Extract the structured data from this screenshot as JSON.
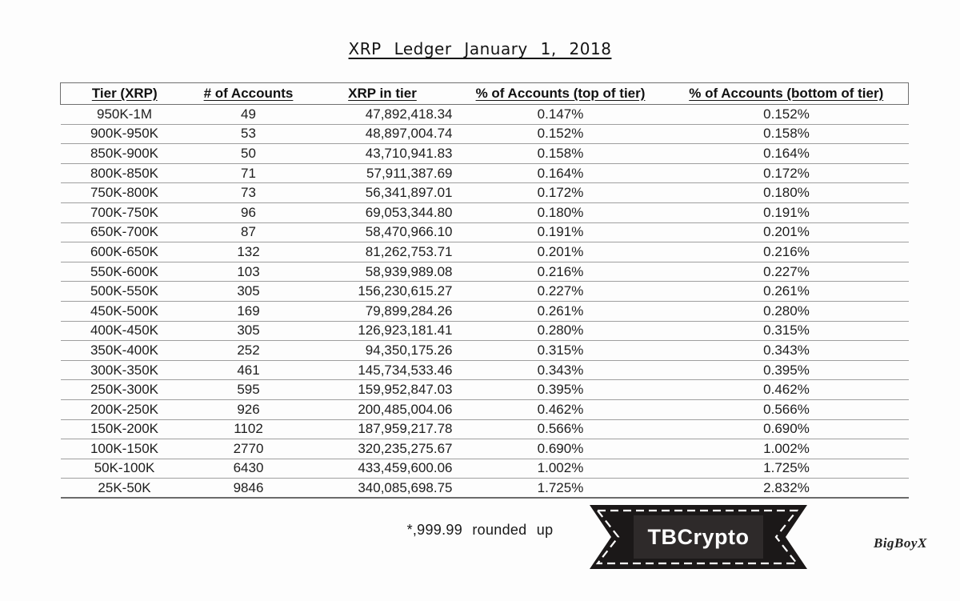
{
  "title": "XRP Ledger January 1, 2018",
  "chart_data": {
    "type": "table",
    "title": "XRP Ledger January 1, 2018",
    "columns": [
      "Tier (XRP)",
      "# of Accounts",
      "XRP in tier",
      "% of Accounts (top of tier)",
      "% of Accounts (bottom of tier)"
    ],
    "rows": [
      [
        "950K-1M",
        "49",
        "47,892,418.34",
        "0.147%",
        "0.152%"
      ],
      [
        "900K-950K",
        "53",
        "48,897,004.74",
        "0.152%",
        "0.158%"
      ],
      [
        "850K-900K",
        "50",
        "43,710,941.83",
        "0.158%",
        "0.164%"
      ],
      [
        "800K-850K",
        "71",
        "57,911,387.69",
        "0.164%",
        "0.172%"
      ],
      [
        "750K-800K",
        "73",
        "56,341,897.01",
        "0.172%",
        "0.180%"
      ],
      [
        "700K-750K",
        "96",
        "69,053,344.80",
        "0.180%",
        "0.191%"
      ],
      [
        "650K-700K",
        "87",
        "58,470,966.10",
        "0.191%",
        "0.201%"
      ],
      [
        "600K-650K",
        "132",
        "81,262,753.71",
        "0.201%",
        "0.216%"
      ],
      [
        "550K-600K",
        "103",
        "58,939,989.08",
        "0.216%",
        "0.227%"
      ],
      [
        "500K-550K",
        "305",
        "156,230,615.27",
        "0.227%",
        "0.261%"
      ],
      [
        "450K-500K",
        "169",
        "79,899,284.26",
        "0.261%",
        "0.280%"
      ],
      [
        "400K-450K",
        "305",
        "126,923,181.41",
        "0.280%",
        "0.315%"
      ],
      [
        "350K-400K",
        "252",
        "94,350,175.26",
        "0.315%",
        "0.343%"
      ],
      [
        "300K-350K",
        "461",
        "145,734,533.46",
        "0.343%",
        "0.395%"
      ],
      [
        "250K-300K",
        "595",
        "159,952,847.03",
        "0.395%",
        "0.462%"
      ],
      [
        "200K-250K",
        "926",
        "200,485,004.06",
        "0.462%",
        "0.566%"
      ],
      [
        "150K-200K",
        "1102",
        "187,959,217.78",
        "0.566%",
        "0.690%"
      ],
      [
        "100K-150K",
        "2770",
        "320,235,275.67",
        "0.690%",
        "1.002%"
      ],
      [
        "50K-100K",
        "6430",
        "433,459,600.06",
        "1.002%",
        "1.725%"
      ],
      [
        "25K-50K",
        "9846",
        "340,085,698.75",
        "1.725%",
        "2.832%"
      ]
    ]
  },
  "footer": {
    "note": "*,999.99 rounded up",
    "badge_label": "TBCrypto",
    "signature": "BigBoyX"
  },
  "colors": {
    "ribbon-bg": "#1b1818",
    "ribbon-inner": "#2e2a2a",
    "ribbon-stitch": "#ffffff",
    "text": "#1c1c1c",
    "row-line": "#9f9f9f",
    "header-box": "#6f6f6f"
  }
}
